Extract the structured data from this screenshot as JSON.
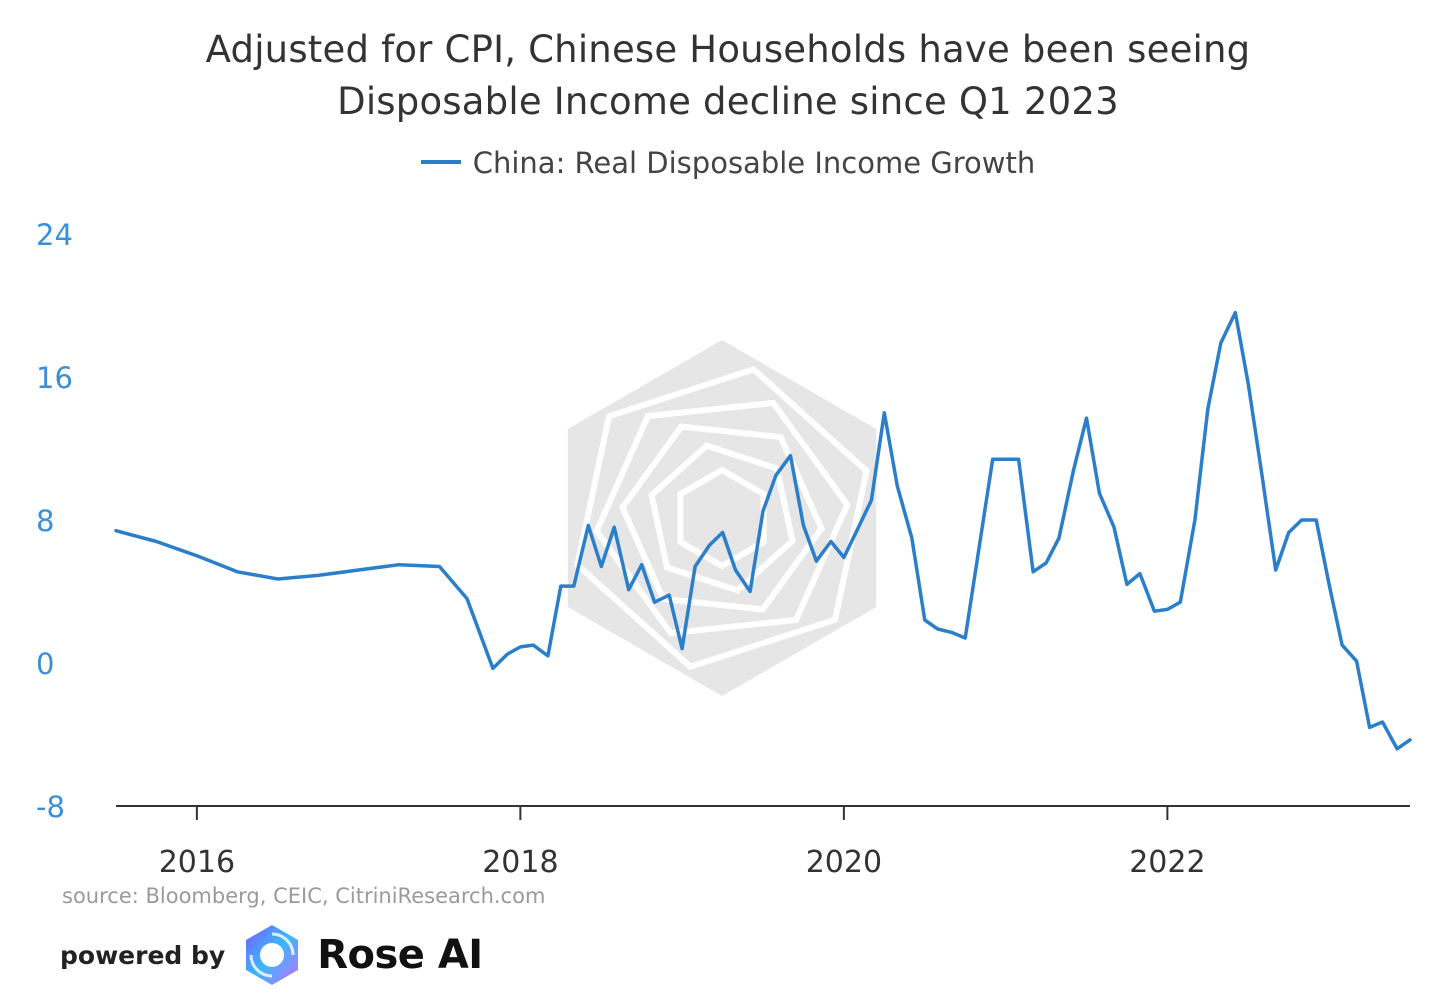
{
  "chart_data": {
    "type": "line",
    "title": "Adjusted for CPI, Chinese Households have been seeing Disposable Income decline since Q1 2023",
    "xlabel": "",
    "ylabel": "",
    "xlim": [
      2015.5,
      2023.5
    ],
    "ylim": [
      -8,
      24
    ],
    "y_ticks": [
      "24",
      "16",
      "8",
      "0",
      "-8"
    ],
    "x_ticks": [
      "2016",
      "2018",
      "2020",
      "2022"
    ],
    "grid": false,
    "legend": "top-center",
    "series": [
      {
        "name": "China: Real Disposable Income Growth",
        "color": "#2b7fca",
        "points": [
          [
            2015.5,
            7.4
          ],
          [
            2015.75,
            6.8
          ],
          [
            2016.0,
            6.0
          ],
          [
            2016.25,
            5.1
          ],
          [
            2016.5,
            4.7
          ],
          [
            2016.75,
            4.9
          ],
          [
            2017.0,
            5.2
          ],
          [
            2017.25,
            5.5
          ],
          [
            2017.5,
            5.4
          ],
          [
            2017.67,
            3.6
          ],
          [
            2017.83,
            -0.3
          ],
          [
            2017.92,
            0.5
          ],
          [
            2018.0,
            0.9
          ],
          [
            2018.08,
            1.0
          ],
          [
            2018.17,
            0.4
          ],
          [
            2018.25,
            4.3
          ],
          [
            2018.33,
            4.3
          ],
          [
            2018.42,
            7.7
          ],
          [
            2018.5,
            5.4
          ],
          [
            2018.58,
            7.6
          ],
          [
            2018.67,
            4.1
          ],
          [
            2018.75,
            5.5
          ],
          [
            2018.83,
            3.4
          ],
          [
            2018.92,
            3.8
          ],
          [
            2019.0,
            0.8
          ],
          [
            2019.08,
            5.4
          ],
          [
            2019.17,
            6.6
          ],
          [
            2019.25,
            7.3
          ],
          [
            2019.33,
            5.2
          ],
          [
            2019.42,
            4.0
          ],
          [
            2019.5,
            8.5
          ],
          [
            2019.58,
            10.5
          ],
          [
            2019.67,
            11.6
          ],
          [
            2019.75,
            7.7
          ],
          [
            2019.83,
            5.7
          ],
          [
            2019.92,
            6.8
          ],
          [
            2020.0,
            5.9
          ],
          [
            2020.08,
            7.4
          ],
          [
            2020.17,
            9.1
          ],
          [
            2020.25,
            14.0
          ],
          [
            2020.33,
            9.9
          ],
          [
            2020.42,
            7.0
          ],
          [
            2020.5,
            2.4
          ],
          [
            2020.58,
            1.9
          ],
          [
            2020.67,
            1.7
          ],
          [
            2020.75,
            1.4
          ],
          [
            2020.92,
            11.4
          ],
          [
            2021.0,
            11.4
          ],
          [
            2021.08,
            11.4
          ],
          [
            2021.17,
            5.1
          ],
          [
            2021.25,
            5.6
          ],
          [
            2021.33,
            7.0
          ],
          [
            2021.42,
            10.8
          ],
          [
            2021.5,
            13.7
          ],
          [
            2021.58,
            9.5
          ],
          [
            2021.67,
            7.6
          ],
          [
            2021.75,
            4.4
          ],
          [
            2021.83,
            5.0
          ],
          [
            2021.92,
            2.9
          ],
          [
            2022.0,
            3.0
          ],
          [
            2022.08,
            3.4
          ],
          [
            2022.17,
            8.0
          ],
          [
            2022.25,
            14.2
          ],
          [
            2022.33,
            17.9
          ],
          [
            2022.42,
            19.6
          ],
          [
            2022.5,
            15.6
          ],
          [
            2022.58,
            10.8
          ],
          [
            2022.67,
            5.2
          ],
          [
            2022.75,
            7.3
          ],
          [
            2022.83,
            8.0
          ],
          [
            2022.92,
            8.0
          ],
          [
            2023.0,
            4.4
          ],
          [
            2023.08,
            1.0
          ],
          [
            2023.17,
            0.1
          ],
          [
            2023.25,
            -3.6
          ],
          [
            2023.33,
            -3.3
          ],
          [
            2023.42,
            -4.8
          ],
          [
            2023.5,
            -4.3
          ]
        ]
      }
    ],
    "annotations": [
      "source: Bloomberg, CEIC, CitriniResearch.com"
    ]
  },
  "title_line1": "Adjusted for CPI, Chinese Households have been seeing",
  "title_line2": "Disposable Income decline since Q1 2023",
  "legend_label": "China: Real Disposable Income Growth",
  "source_text": "source: Bloomberg, CEIC, CitriniResearch.com",
  "powered_by": "powered by",
  "brand_name": "Rose AI",
  "colors": {
    "series": "#2b7fca",
    "axis_text_y": "#3a8fd6",
    "axis_text_x": "#333333",
    "watermark": "#e6e6e6"
  },
  "icons": {
    "watermark": "rose-ai-watermark-icon",
    "brand_logo": "rose-ai-logo-icon"
  }
}
